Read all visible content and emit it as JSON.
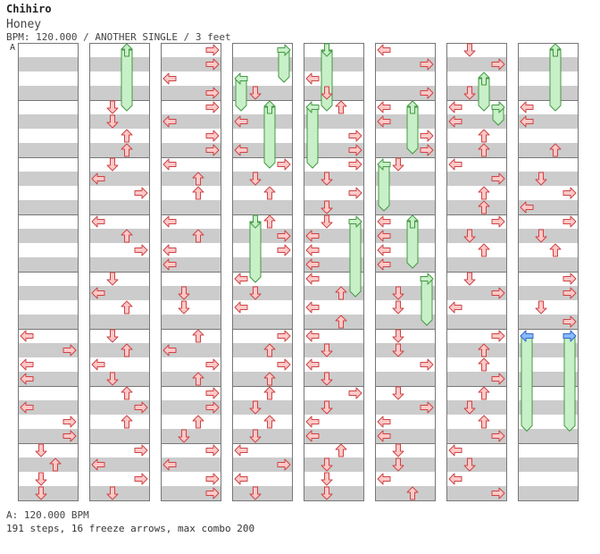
{
  "header": {
    "artist": "Chihiro",
    "title": "Honey",
    "meta": "BPM: 120.000 / ANOTHER SINGLE / 3 feet",
    "bpm_marker": "A"
  },
  "footer": {
    "bpm": "A: 120.000 BPM",
    "stats": "191 steps, 16 freeze arrows, max combo 200"
  },
  "colors": {
    "stripe": "#cccccc",
    "panel_bg": "#ffffff",
    "panel_border": "#777777",
    "arrow_fill": "#ffc8c8",
    "arrow_stroke": "#cc4444",
    "freeze_fill": "#c8f0c8",
    "freeze_stroke": "#449944",
    "freeze_head_blue": "#88bbff"
  },
  "chart_data": {
    "type": "stepchart",
    "columns": 8,
    "measures_per_column": 8,
    "lanes": [
      "left",
      "down",
      "up",
      "right"
    ],
    "columns_data": [
      {
        "arrows": [
          [
            5.0,
            "left"
          ],
          [
            5.25,
            "right"
          ],
          [
            5.5,
            "left"
          ],
          [
            5.75,
            "left"
          ],
          [
            6.25,
            "left"
          ],
          [
            6.5,
            "right"
          ],
          [
            6.75,
            "right"
          ],
          [
            7.0,
            "down"
          ],
          [
            7.25,
            "up"
          ],
          [
            7.5,
            "down"
          ],
          [
            7.75,
            "down"
          ]
        ],
        "freezes": []
      },
      {
        "arrows": [
          [
            1.0,
            "down"
          ],
          [
            1.25,
            "down"
          ],
          [
            1.5,
            "up"
          ],
          [
            1.75,
            "up"
          ],
          [
            2.0,
            "down"
          ],
          [
            2.25,
            "left"
          ],
          [
            2.5,
            "right"
          ],
          [
            3.0,
            "left"
          ],
          [
            3.25,
            "up"
          ],
          [
            3.5,
            "right"
          ],
          [
            4.0,
            "down"
          ],
          [
            4.25,
            "left"
          ],
          [
            4.5,
            "up"
          ],
          [
            5.0,
            "down"
          ],
          [
            5.25,
            "up"
          ],
          [
            5.5,
            "left"
          ],
          [
            5.75,
            "down"
          ],
          [
            6.0,
            "up"
          ],
          [
            6.25,
            "right"
          ],
          [
            6.5,
            "up"
          ],
          [
            7.0,
            "right"
          ],
          [
            7.25,
            "left"
          ],
          [
            7.5,
            "right"
          ],
          [
            7.75,
            "down"
          ]
        ],
        "freezes": [
          [
            "up",
            0.0,
            1.0
          ]
        ]
      },
      {
        "arrows": [
          [
            0.0,
            "right"
          ],
          [
            0.25,
            "right"
          ],
          [
            0.5,
            "left"
          ],
          [
            0.75,
            "right"
          ],
          [
            1.0,
            "right"
          ],
          [
            1.25,
            "left"
          ],
          [
            1.5,
            "right"
          ],
          [
            1.75,
            "right"
          ],
          [
            2.0,
            "left"
          ],
          [
            2.25,
            "up"
          ],
          [
            2.5,
            "up"
          ],
          [
            3.0,
            "left"
          ],
          [
            3.25,
            "up"
          ],
          [
            3.5,
            "left"
          ],
          [
            3.75,
            "left"
          ],
          [
            4.25,
            "down"
          ],
          [
            4.5,
            "down"
          ],
          [
            5.0,
            "up"
          ],
          [
            5.25,
            "left"
          ],
          [
            5.5,
            "right"
          ],
          [
            5.75,
            "up"
          ],
          [
            6.0,
            "right"
          ],
          [
            6.25,
            "right"
          ],
          [
            6.5,
            "up"
          ],
          [
            6.75,
            "down"
          ],
          [
            7.0,
            "right"
          ],
          [
            7.25,
            "left"
          ],
          [
            7.5,
            "right"
          ],
          [
            7.75,
            "right"
          ]
        ],
        "freezes": []
      },
      {
        "arrows": [
          [
            0.75,
            "down"
          ],
          [
            1.25,
            "left"
          ],
          [
            1.75,
            "left"
          ],
          [
            2.0,
            "right"
          ],
          [
            2.25,
            "down"
          ],
          [
            2.5,
            "up"
          ],
          [
            3.0,
            "up"
          ],
          [
            3.25,
            "right"
          ],
          [
            3.5,
            "right"
          ],
          [
            4.0,
            "left"
          ],
          [
            4.25,
            "down"
          ],
          [
            4.5,
            "left"
          ],
          [
            5.0,
            "right"
          ],
          [
            5.25,
            "up"
          ],
          [
            5.5,
            "right"
          ],
          [
            5.75,
            "up"
          ],
          [
            6.0,
            "up"
          ],
          [
            6.25,
            "down"
          ],
          [
            6.5,
            "up"
          ],
          [
            6.75,
            "down"
          ],
          [
            7.0,
            "left"
          ],
          [
            7.25,
            "right"
          ],
          [
            7.5,
            "left"
          ],
          [
            7.75,
            "down"
          ]
        ],
        "freezes": [
          [
            "right",
            0.0,
            0.5
          ],
          [
            "left",
            0.5,
            1.0
          ],
          [
            "up",
            1.0,
            2.0
          ],
          [
            "down",
            3.0,
            4.0
          ]
        ]
      },
      {
        "arrows": [
          [
            0.5,
            "left"
          ],
          [
            0.75,
            "down"
          ],
          [
            1.0,
            "up"
          ],
          [
            1.5,
            "right"
          ],
          [
            1.75,
            "right"
          ],
          [
            2.0,
            "right"
          ],
          [
            2.25,
            "down"
          ],
          [
            2.5,
            "right"
          ],
          [
            2.75,
            "down"
          ],
          [
            3.0,
            "down"
          ],
          [
            3.25,
            "left"
          ],
          [
            3.5,
            "left"
          ],
          [
            3.75,
            "left"
          ],
          [
            4.0,
            "left"
          ],
          [
            4.25,
            "up"
          ],
          [
            4.5,
            "left"
          ],
          [
            4.75,
            "up"
          ],
          [
            5.0,
            "left"
          ],
          [
            5.25,
            "down"
          ],
          [
            5.5,
            "left"
          ],
          [
            5.75,
            "down"
          ],
          [
            6.0,
            "right"
          ],
          [
            6.25,
            "down"
          ],
          [
            6.5,
            "left"
          ],
          [
            6.75,
            "left"
          ],
          [
            7.0,
            "up"
          ],
          [
            7.25,
            "down"
          ],
          [
            7.5,
            "down"
          ],
          [
            7.75,
            "down"
          ]
        ],
        "freezes": [
          [
            "down",
            0.0,
            1.0
          ],
          [
            "left",
            1.0,
            2.0
          ],
          [
            "right",
            3.0,
            4.25
          ]
        ]
      },
      {
        "arrows": [
          [
            0.0,
            "left"
          ],
          [
            0.25,
            "right"
          ],
          [
            0.75,
            "right"
          ],
          [
            1.0,
            "left"
          ],
          [
            1.25,
            "left"
          ],
          [
            1.5,
            "right"
          ],
          [
            1.75,
            "right"
          ],
          [
            2.0,
            "down"
          ],
          [
            3.0,
            "left"
          ],
          [
            3.25,
            "left"
          ],
          [
            3.5,
            "left"
          ],
          [
            3.75,
            "left"
          ],
          [
            4.25,
            "down"
          ],
          [
            4.5,
            "down"
          ],
          [
            5.0,
            "down"
          ],
          [
            5.25,
            "down"
          ],
          [
            5.5,
            "right"
          ],
          [
            6.0,
            "down"
          ],
          [
            6.25,
            "right"
          ],
          [
            6.5,
            "left"
          ],
          [
            6.75,
            "left"
          ],
          [
            7.0,
            "down"
          ],
          [
            7.25,
            "down"
          ],
          [
            7.5,
            "left"
          ],
          [
            7.75,
            "up"
          ]
        ],
        "freezes": [
          [
            "up",
            1.0,
            1.75
          ],
          [
            "left",
            2.0,
            2.75
          ],
          [
            "up",
            3.0,
            3.75
          ],
          [
            "right",
            4.0,
            4.75
          ]
        ]
      },
      {
        "arrows": [
          [
            0.0,
            "down"
          ],
          [
            0.25,
            "right"
          ],
          [
            0.75,
            "down"
          ],
          [
            1.0,
            "left"
          ],
          [
            1.25,
            "left"
          ],
          [
            1.5,
            "up"
          ],
          [
            1.75,
            "up"
          ],
          [
            2.0,
            "left"
          ],
          [
            2.25,
            "right"
          ],
          [
            2.5,
            "up"
          ],
          [
            2.75,
            "up"
          ],
          [
            3.0,
            "right"
          ],
          [
            3.25,
            "down"
          ],
          [
            3.5,
            "up"
          ],
          [
            4.0,
            "down"
          ],
          [
            4.25,
            "right"
          ],
          [
            4.5,
            "left"
          ],
          [
            5.0,
            "right"
          ],
          [
            5.25,
            "up"
          ],
          [
            5.5,
            "up"
          ],
          [
            5.75,
            "right"
          ],
          [
            6.0,
            "up"
          ],
          [
            6.25,
            "down"
          ],
          [
            6.5,
            "up"
          ],
          [
            6.75,
            "right"
          ],
          [
            7.0,
            "left"
          ],
          [
            7.25,
            "down"
          ],
          [
            7.5,
            "left"
          ],
          [
            7.75,
            "right"
          ]
        ],
        "freezes": [
          [
            "up",
            0.5,
            1.0
          ],
          [
            "right",
            1.0,
            1.25
          ]
        ]
      },
      {
        "arrows": [
          [
            1.0,
            "left"
          ],
          [
            1.25,
            "left"
          ],
          [
            1.75,
            "up"
          ],
          [
            2.25,
            "down"
          ],
          [
            2.5,
            "right"
          ],
          [
            2.75,
            "left"
          ],
          [
            3.0,
            "right"
          ],
          [
            3.25,
            "down"
          ],
          [
            3.5,
            "up"
          ],
          [
            4.0,
            "right"
          ],
          [
            4.25,
            "right"
          ],
          [
            4.5,
            "down"
          ],
          [
            4.75,
            "right"
          ]
        ],
        "freezes": [
          [
            "up",
            0.0,
            1.0
          ],
          [
            "left",
            5.0,
            6.6,
            "blue"
          ],
          [
            "right",
            5.0,
            6.6,
            "blue"
          ]
        ]
      }
    ]
  }
}
